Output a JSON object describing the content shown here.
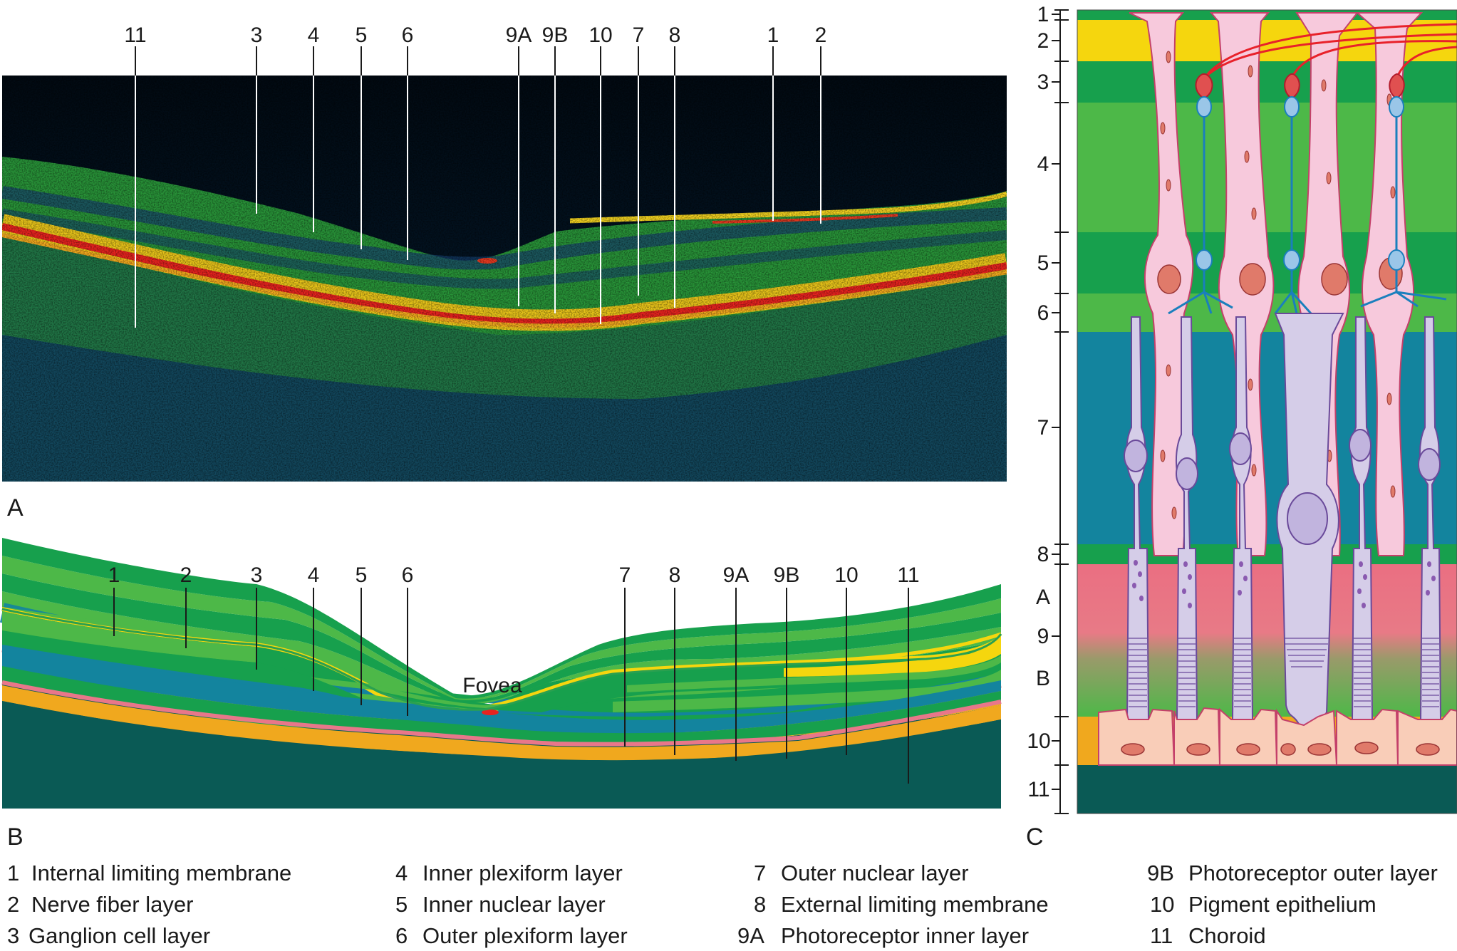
{
  "panels": {
    "A": "A",
    "B": "B",
    "C": "C"
  },
  "fovea_label": "Fovea",
  "panel_a_labels": [
    "11",
    "3",
    "4",
    "5",
    "6",
    "9A",
    "9B",
    "10",
    "7",
    "8",
    "1",
    "2"
  ],
  "panel_b_labels": [
    "1",
    "2",
    "3",
    "4",
    "5",
    "6",
    "7",
    "8",
    "9A",
    "9B",
    "10",
    "11"
  ],
  "panel_c_scale": [
    "1",
    "2",
    "3",
    "4",
    "5",
    "6",
    "7",
    "8",
    "A",
    "9",
    "B",
    "10",
    "11"
  ],
  "legend": [
    {
      "num": "1",
      "text": "Internal limiting membrane"
    },
    {
      "num": "2",
      "text": "Nerve fiber layer"
    },
    {
      "num": "3",
      "text": "Ganglion cell layer"
    },
    {
      "num": "4",
      "text": "Inner plexiform layer"
    },
    {
      "num": "5",
      "text": "Inner nuclear layer"
    },
    {
      "num": "6",
      "text": "Outer plexiform layer"
    },
    {
      "num": "7",
      "text": "Outer nuclear layer"
    },
    {
      "num": "8",
      "text": "External limiting membrane"
    },
    {
      "num": "9A",
      "text": "Photoreceptor inner layer"
    },
    {
      "num": "9B",
      "text": "Photoreceptor outer layer"
    },
    {
      "num": "10",
      "text": "Pigment epithelium"
    },
    {
      "num": "11",
      "text": "Choroid"
    }
  ],
  "colors": {
    "oct_background": "#03111f",
    "layer_light_green": "#4db848",
    "layer_dark_green": "#17a04d",
    "nerve_fiber_yellow": "#f5d60e",
    "outer_nuclear_teal": "#13849e",
    "pigment_epithelium_pink": "#e8778a",
    "choroid_orange": "#f0a81e",
    "choroid_dark": "#0a5a55",
    "cell_pink": "#f7c9dc",
    "cell_lilac": "#d5cde8",
    "axon_red": "#e8212a"
  }
}
